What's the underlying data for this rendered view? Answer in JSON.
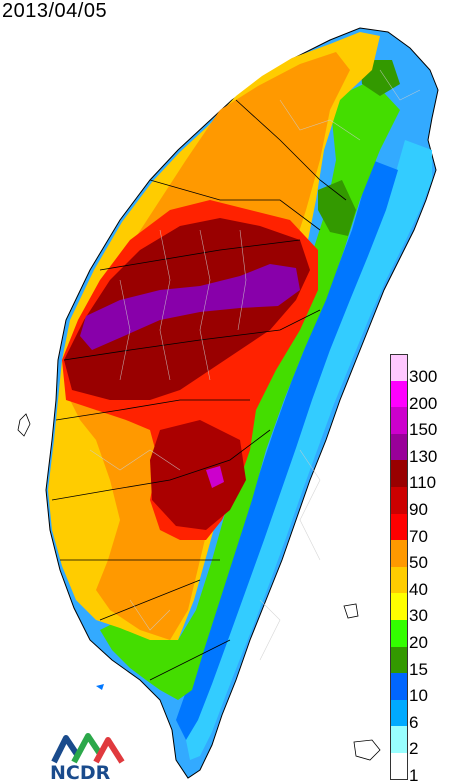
{
  "title": "2013/04/05",
  "legend": {
    "items": [
      {
        "label": "300",
        "color": "#ffc8ff"
      },
      {
        "label": "200",
        "color": "#ff00ff"
      },
      {
        "label": "150",
        "color": "#cc00cc"
      },
      {
        "label": "130",
        "color": "#990099"
      },
      {
        "label": "110",
        "color": "#990000"
      },
      {
        "label": "90",
        "color": "#cc0000"
      },
      {
        "label": "70",
        "color": "#ff0000"
      },
      {
        "label": "50",
        "color": "#ff9900"
      },
      {
        "label": "40",
        "color": "#ffcc00"
      },
      {
        "label": "30",
        "color": "#ffff00"
      },
      {
        "label": "20",
        "color": "#33ff00"
      },
      {
        "label": "15",
        "color": "#339900"
      },
      {
        "label": "10",
        "color": "#0066ff"
      },
      {
        "label": "6",
        "color": "#00aaff"
      },
      {
        "label": "2",
        "color": "#99ffff"
      },
      {
        "label": "1",
        "color": "#ffffff"
      }
    ]
  },
  "logo": {
    "text": "NCDR",
    "colors": [
      "#1a4b8c",
      "#2ba84a",
      "#e03a3e"
    ]
  }
}
